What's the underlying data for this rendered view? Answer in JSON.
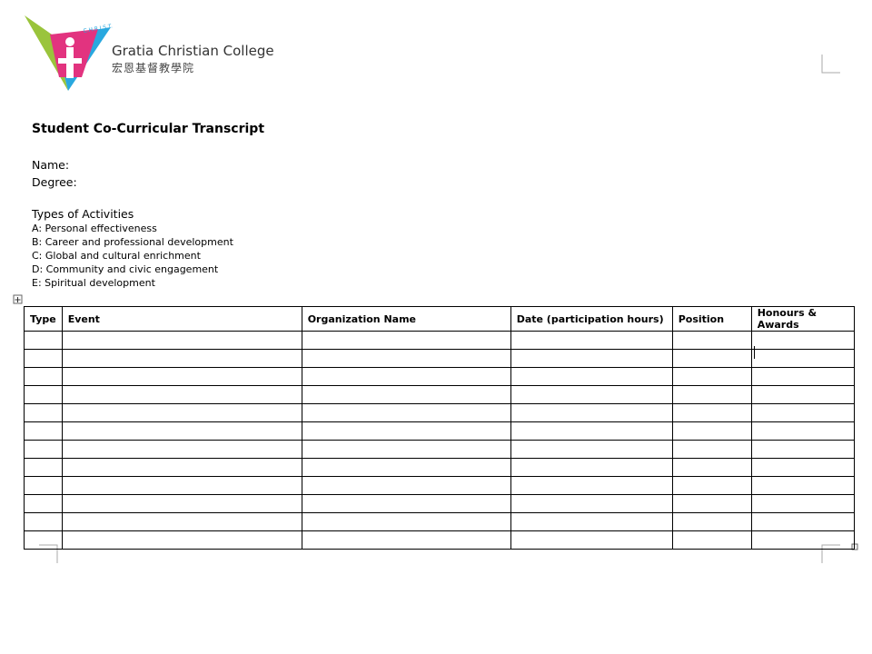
{
  "logo": {
    "tagline": "C.H.R.I.S.T.",
    "name": "Gratia Christian College",
    "name_chinese": "宏恩基督教學院"
  },
  "title": "Student Co-Curricular Transcript",
  "fields": [
    "Name:",
    "Degree:"
  ],
  "activities": {
    "heading": "Types of Activities",
    "items": [
      "A: Personal effectiveness",
      "B: Career and professional development",
      "C: Global and cultural enrichment",
      "D: Community and civic engagement",
      "E: Spiritual development"
    ]
  },
  "table": {
    "headers": [
      "Type",
      "Event",
      "Organization Name",
      "Date (participation hours)",
      "Position",
      "Honours & Awards"
    ]
  }
}
